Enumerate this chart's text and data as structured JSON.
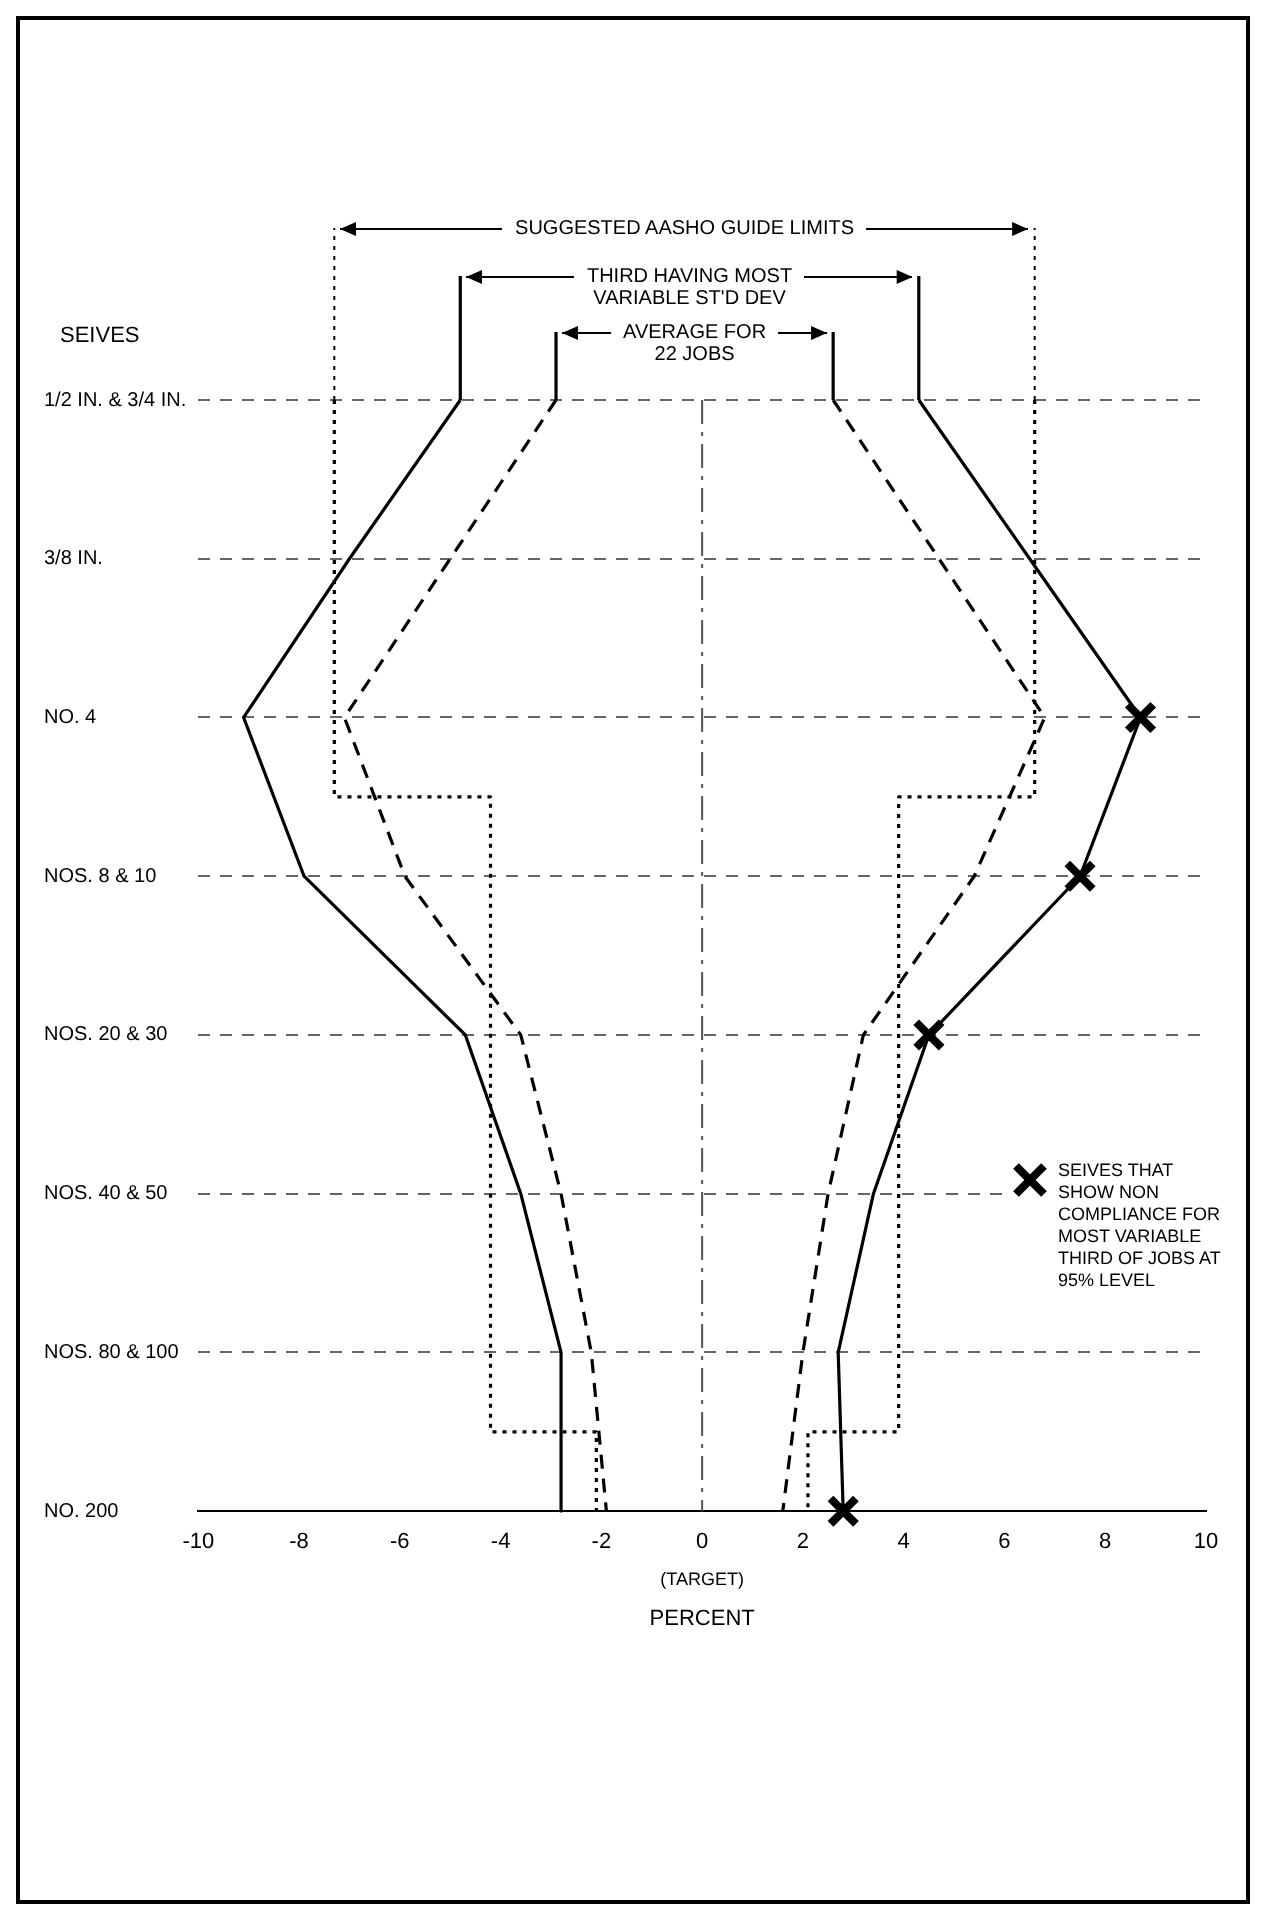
{
  "chart_data": {
    "type": "line",
    "orientation": "horizontal",
    "ylabel": "SEIVES",
    "xlabel": "PERCENT",
    "categories": [
      "1/2 IN. & 3/4 IN.",
      "3/8 IN.",
      "NO. 4",
      "NOS. 8 & 10",
      "NOS. 20 & 30",
      "NOS. 40 & 50",
      "NOS. 80 & 100",
      "NO. 200"
    ],
    "series": [
      {
        "type": "step",
        "color": "#000000",
        "line_style": "dotted",
        "values": [
          -7.3,
          -7.3,
          -7.3,
          -4.2,
          -4.2,
          -4.2,
          -4.2,
          -2.1
        ]
      },
      {
        "type": "step",
        "color": "#000000",
        "line_style": "dotted",
        "values": [
          6.6,
          6.6,
          6.6,
          3.9,
          3.9,
          3.9,
          3.9,
          2.1
        ]
      },
      {
        "type": "line",
        "color": "#000000",
        "line_style": "solid",
        "values": [
          -4.8,
          -7,
          -9.1,
          -7.9,
          -4.7,
          -3.6,
          -2.8,
          -2.8
        ]
      },
      {
        "type": "line",
        "color": "#000000",
        "line_style": "solid",
        "values": [
          4.3,
          6.5,
          8.7,
          7.5,
          4.5,
          3.4,
          2.7,
          2.8
        ]
      },
      {
        "type": "line",
        "color": "#000000",
        "line_style": "dashed",
        "values": [
          -2.9,
          -5,
          -7.1,
          -5.9,
          -3.6,
          -2.8,
          -2.2,
          -1.9
        ]
      },
      {
        "type": "line",
        "color": "#000000",
        "line_style": "dashed",
        "values": [
          2.6,
          4.7,
          6.8,
          5.4,
          3.2,
          2.5,
          2,
          1.6
        ]
      },
      {
        "type": "scatter",
        "marker": "cross",
        "color": "#000000",
        "name": "SEIVES THAT SHOW NON COMPLIANCE FOR MOST VARIABLE THIRD OF JOBS AT 95% LEVEL",
        "values": [
          null,
          null,
          8.7,
          7.5,
          4.5,
          null,
          null,
          2.8
        ]
      }
    ],
    "xlim": [
      -10,
      10
    ],
    "xticks": [
      -10,
      -8,
      -6,
      -4,
      -2,
      0,
      2,
      4,
      6,
      8,
      10
    ],
    "grid": "y",
    "legend": "right",
    "ref_lines": [
      {
        "axis": "x",
        "value": 0,
        "line_style": "dashed",
        "color": "#555555"
      }
    ],
    "annotations": [
      "SUGGESTED AASHO GUIDE LIMITS",
      "THIRD HAVING MOST\nVARIABLE ST'D DEV",
      "AVERAGE FOR\n22 JOBS",
      "(TARGET)"
    ]
  }
}
